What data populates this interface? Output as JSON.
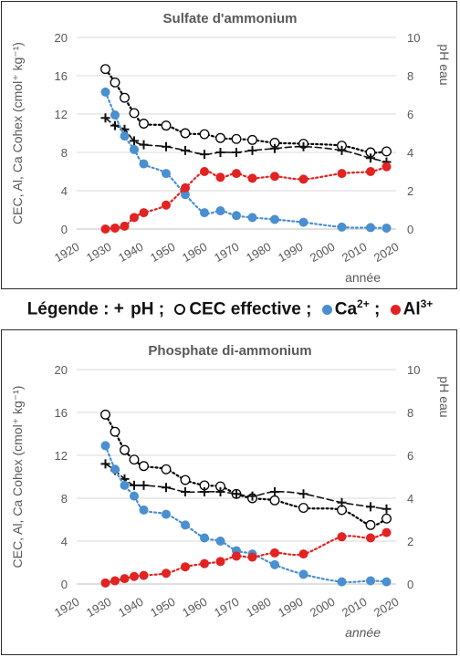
{
  "legend": {
    "prefix": "Légende :",
    "ph_symbol": "+",
    "ph_label": "pH ;",
    "cec_label": "CEC effective ;",
    "ca_label": "Ca",
    "ca_sup": "2+",
    "sep": ";",
    "al_label": "Al",
    "al_sup": "3+"
  },
  "colors": {
    "ca": "#4a8fd0",
    "al": "#e32222",
    "cec": "#000000",
    "ph": "#111111",
    "grid": "#d9d9d9"
  },
  "chart_data": [
    {
      "type": "scatter",
      "title": "Sulfate d'ammonium",
      "xlabel": "année",
      "ylabel": "CEC, Al, Ca Cohex (cmol⁺ kg⁻¹)",
      "y2label": "pH eau",
      "xlim": [
        1920,
        2020
      ],
      "ylim": [
        0,
        20
      ],
      "y2lim": [
        0,
        10
      ],
      "xticks": [
        "1920",
        "1930",
        "1940",
        "1950",
        "1960",
        "1970",
        "1980",
        "1990",
        "2000",
        "2010",
        "2020"
      ],
      "yticks": [
        "0",
        "4",
        "8",
        "12",
        "16",
        "20"
      ],
      "y2ticks": [
        "0",
        "2",
        "4",
        "6",
        "8",
        "10"
      ],
      "grid": "horizontal",
      "series": [
        {
          "name": "CEC effective",
          "axis": "left",
          "marker": "open-circle",
          "trend": "dotted",
          "x": [
            1929,
            1932,
            1935,
            1938,
            1941,
            1948,
            1954,
            1960,
            1965,
            1970,
            1975,
            1982,
            1991,
            2003,
            2012,
            2017
          ],
          "y": [
            16.7,
            15.3,
            13.7,
            12.1,
            11.0,
            10.8,
            10.0,
            9.9,
            9.5,
            9.4,
            9.3,
            9.0,
            8.9,
            8.7,
            8.0,
            8.1
          ]
        },
        {
          "name": "pH",
          "axis": "right",
          "marker": "plus",
          "trend": "dashed",
          "x": [
            1929,
            1932,
            1935,
            1938,
            1941,
            1948,
            1954,
            1960,
            1965,
            1970,
            1975,
            1982,
            1991,
            2003,
            2012,
            2017
          ],
          "y": [
            5.8,
            5.4,
            5.2,
            4.6,
            4.4,
            4.3,
            4.1,
            3.9,
            4.0,
            4.0,
            4.1,
            4.2,
            4.3,
            4.1,
            3.7,
            3.5
          ]
        },
        {
          "name": "Ca2+",
          "axis": "left",
          "marker": "filled-circle",
          "trend": "dotted",
          "x": [
            1929,
            1932,
            1935,
            1938,
            1941,
            1948,
            1954,
            1960,
            1965,
            1970,
            1975,
            1982,
            1991,
            2003,
            2012,
            2017
          ],
          "y": [
            14.3,
            11.9,
            9.7,
            8.3,
            6.8,
            5.8,
            3.6,
            1.7,
            1.9,
            1.4,
            1.2,
            1.0,
            0.7,
            0.2,
            0.15,
            0.1
          ]
        },
        {
          "name": "Al3+",
          "axis": "left",
          "marker": "filled-circle",
          "trend": "dotted",
          "x": [
            1929,
            1932,
            1935,
            1938,
            1941,
            1948,
            1954,
            1960,
            1965,
            1970,
            1975,
            1982,
            1991,
            2003,
            2012,
            2017
          ],
          "y": [
            0.0,
            0.1,
            0.3,
            1.2,
            1.7,
            2.5,
            4.3,
            6.0,
            5.4,
            5.8,
            5.3,
            5.5,
            5.2,
            5.8,
            6.0,
            6.5
          ]
        }
      ]
    },
    {
      "type": "scatter",
      "title": "Phosphate di-ammonium",
      "xlabel": "année",
      "ylabel": "CEC, Al, Ca Cohex (cmol⁺ kg⁻¹)",
      "y2label": "pH eau",
      "xlim": [
        1920,
        2020
      ],
      "ylim": [
        0,
        20
      ],
      "y2lim": [
        0,
        10
      ],
      "xticks": [
        "1920",
        "1930",
        "1940",
        "1950",
        "1960",
        "1970",
        "1980",
        "1990",
        "2000",
        "2010",
        "2020"
      ],
      "yticks": [
        "0",
        "4",
        "8",
        "12",
        "16",
        "20"
      ],
      "y2ticks": [
        "0",
        "2",
        "4",
        "6",
        "8",
        "10"
      ],
      "grid": "horizontal",
      "series": [
        {
          "name": "CEC effective",
          "axis": "left",
          "marker": "open-circle",
          "trend": "dotted",
          "x": [
            1929,
            1932,
            1935,
            1938,
            1941,
            1948,
            1954,
            1960,
            1965,
            1970,
            1975,
            1982,
            1991,
            2003,
            2012,
            2017
          ],
          "y": [
            15.8,
            14.2,
            12.5,
            11.6,
            11.0,
            10.7,
            9.7,
            9.2,
            9.1,
            8.4,
            8.0,
            7.8,
            7.1,
            6.9,
            5.5,
            6.1
          ]
        },
        {
          "name": "pH",
          "axis": "right",
          "marker": "plus",
          "trend": "dashed",
          "x": [
            1929,
            1932,
            1935,
            1938,
            1941,
            1948,
            1954,
            1960,
            1965,
            1970,
            1975,
            1982,
            1991,
            2003,
            2012,
            2017
          ],
          "y": [
            5.6,
            5.3,
            4.9,
            4.6,
            4.6,
            4.5,
            4.3,
            4.3,
            4.3,
            4.2,
            4.1,
            4.3,
            4.2,
            3.8,
            3.6,
            3.5
          ]
        },
        {
          "name": "Ca2+",
          "axis": "left",
          "marker": "filled-circle",
          "trend": "dotted",
          "x": [
            1929,
            1932,
            1935,
            1938,
            1941,
            1948,
            1954,
            1960,
            1965,
            1970,
            1975,
            1982,
            1991,
            2003,
            2012,
            2017
          ],
          "y": [
            12.9,
            10.7,
            9.2,
            8.2,
            6.9,
            6.5,
            5.5,
            4.3,
            4.0,
            3.1,
            2.8,
            1.8,
            0.9,
            0.2,
            0.3,
            0.2
          ]
        },
        {
          "name": "Al3+",
          "axis": "left",
          "marker": "filled-circle",
          "trend": "dotted",
          "x": [
            1929,
            1932,
            1935,
            1938,
            1941,
            1948,
            1954,
            1960,
            1965,
            1970,
            1975,
            1982,
            1991,
            2003,
            2012,
            2017
          ],
          "y": [
            0.1,
            0.3,
            0.5,
            0.7,
            0.8,
            1.0,
            1.6,
            1.9,
            2.1,
            2.6,
            2.5,
            2.9,
            2.8,
            4.4,
            4.3,
            4.8
          ]
        }
      ]
    }
  ]
}
